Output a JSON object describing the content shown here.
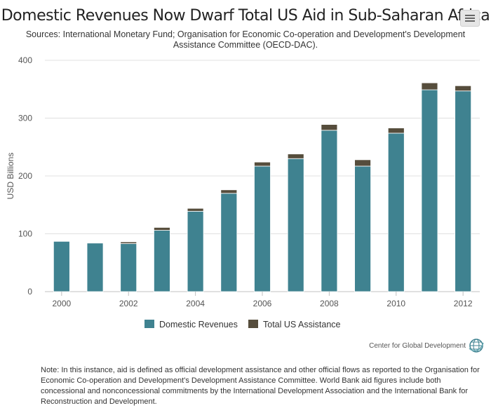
{
  "chart_data": {
    "type": "bar",
    "stacked": true,
    "title": "Domestic Revenues Now Dwarf Total US Aid in Sub-Saharan Africa",
    "subtitle": "Sources: International Monetary Fund; Organisation for Economic Co-operation and Development's Development Assistance Committee (OECD-DAC).",
    "ylabel": "USD Billions",
    "xlabel": "",
    "ylim": [
      0,
      400
    ],
    "yticks": [
      0,
      100,
      200,
      300,
      400
    ],
    "categories": [
      2000,
      2001,
      2002,
      2003,
      2004,
      2005,
      2006,
      2007,
      2008,
      2009,
      2010,
      2011,
      2012
    ],
    "xtick_labels": [
      2000,
      2002,
      2004,
      2006,
      2008,
      2010,
      2012
    ],
    "series": [
      {
        "name": "Domestic Revenues",
        "color": "#3f8290",
        "values": [
          87,
          84,
          83,
          106,
          139,
          170,
          217,
          230,
          279,
          217,
          274,
          349,
          347
        ]
      },
      {
        "name": "Total US Assistance",
        "color": "#564d3c",
        "values": [
          1,
          1,
          3,
          5,
          5,
          6,
          7,
          8,
          10,
          11,
          9,
          12,
          9
        ]
      }
    ],
    "legend_position": "bottom-center",
    "grid": "horizontal"
  },
  "credit": {
    "label": "Center for Global Development",
    "logo_icon": "globe-icon"
  },
  "note": "Note: In this instance, aid is defined as official development assistance and other official flows as reported to the Organisation for Economic Co-operation and Development's Development Assistance Committee. World Bank aid figures include both concessional and nonconcessional commitments by the International Development Association and the International Bank for Reconstruction and Development.",
  "menu": {
    "icon": "hamburger-icon"
  }
}
